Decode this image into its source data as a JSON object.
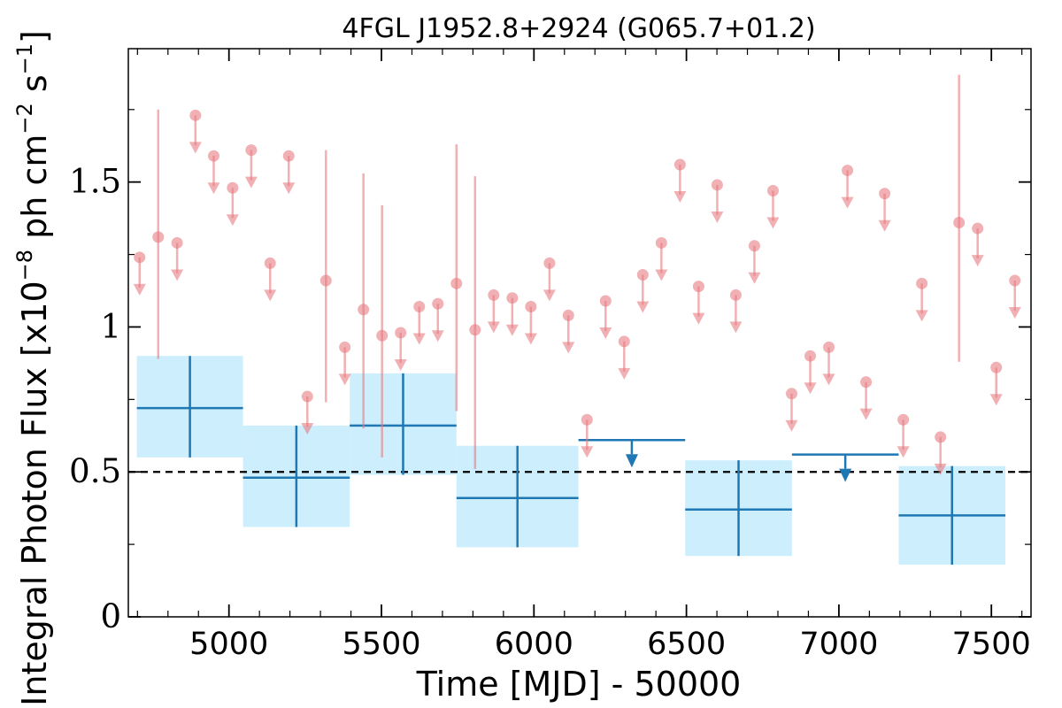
{
  "chart_data": {
    "type": "scatter",
    "title": "4FGL J1952.8+2924 (G065.7+01.2)",
    "xlabel": "Time [MJD] - 50000",
    "ylabel": {
      "main": "Integral Photon Flux [x10",
      "exp1": "−8",
      "mid": " ph cm",
      "exp2": "−2",
      "mid2": " s",
      "exp3": "−1",
      "end": "]"
    },
    "xlim": [
      4670,
      7630
    ],
    "ylim": [
      0,
      1.96
    ],
    "x_ticks": [
      5000,
      5500,
      6000,
      6500,
      7000,
      7500
    ],
    "x_tick_labels": [
      "5000",
      "5500",
      "6000",
      "6500",
      "7000",
      "7500"
    ],
    "y_ticks": [
      0,
      0.5,
      1,
      1.5
    ],
    "y_tick_labels": [
      "0",
      "0.5",
      "1",
      "1.5"
    ],
    "reference_line_y": 0.5,
    "colors": {
      "short_bins": "#e87c80",
      "long_bins": "#1f77b4",
      "long_band": "#cdeefc"
    },
    "short_bin_points": [
      {
        "x": 4707,
        "y": 1.24,
        "upper_limit": true
      },
      {
        "x": 4768,
        "y": 1.31,
        "yerr_low": 0.42,
        "yerr_high": 0.44
      },
      {
        "x": 4830,
        "y": 1.29,
        "upper_limit": true
      },
      {
        "x": 4890,
        "y": 1.73,
        "upper_limit": true
      },
      {
        "x": 4950,
        "y": 1.59,
        "upper_limit": true
      },
      {
        "x": 5012,
        "y": 1.48,
        "upper_limit": true
      },
      {
        "x": 5073,
        "y": 1.61,
        "upper_limit": true
      },
      {
        "x": 5135,
        "y": 1.22,
        "upper_limit": true
      },
      {
        "x": 5196,
        "y": 1.59,
        "upper_limit": true
      },
      {
        "x": 5257,
        "y": 0.76,
        "upper_limit": true
      },
      {
        "x": 5318,
        "y": 1.16,
        "yerr_low": 0.42,
        "yerr_high": 0.45
      },
      {
        "x": 5380,
        "y": 0.93,
        "upper_limit": true
      },
      {
        "x": 5441,
        "y": 1.06,
        "yerr_low": 0.41,
        "yerr_high": 0.47
      },
      {
        "x": 5502,
        "y": 0.97,
        "yerr_low": 0.42,
        "yerr_high": 0.45
      },
      {
        "x": 5563,
        "y": 0.98,
        "upper_limit": true
      },
      {
        "x": 5624,
        "y": 1.07,
        "upper_limit": true
      },
      {
        "x": 5685,
        "y": 1.08,
        "upper_limit": true
      },
      {
        "x": 5746,
        "y": 1.15,
        "yerr_low": 0.44,
        "yerr_high": 0.48
      },
      {
        "x": 5807,
        "y": 0.99,
        "yerr_low": 0.48,
        "yerr_high": 0.53
      },
      {
        "x": 5868,
        "y": 1.11,
        "upper_limit": true
      },
      {
        "x": 5929,
        "y": 1.1,
        "upper_limit": true
      },
      {
        "x": 5990,
        "y": 1.07,
        "upper_limit": true
      },
      {
        "x": 6051,
        "y": 1.22,
        "upper_limit": true
      },
      {
        "x": 6113,
        "y": 1.04,
        "upper_limit": true
      },
      {
        "x": 6174,
        "y": 0.68,
        "upper_limit": true
      },
      {
        "x": 6235,
        "y": 1.09,
        "upper_limit": true
      },
      {
        "x": 6296,
        "y": 0.95,
        "upper_limit": true
      },
      {
        "x": 6357,
        "y": 1.18,
        "upper_limit": true
      },
      {
        "x": 6418,
        "y": 1.29,
        "upper_limit": true
      },
      {
        "x": 6479,
        "y": 1.56,
        "upper_limit": true
      },
      {
        "x": 6540,
        "y": 1.14,
        "upper_limit": true
      },
      {
        "x": 6601,
        "y": 1.49,
        "upper_limit": true
      },
      {
        "x": 6662,
        "y": 1.11,
        "upper_limit": true
      },
      {
        "x": 6723,
        "y": 1.28,
        "upper_limit": true
      },
      {
        "x": 6784,
        "y": 1.47,
        "upper_limit": true
      },
      {
        "x": 6845,
        "y": 0.77,
        "upper_limit": true
      },
      {
        "x": 6906,
        "y": 0.9,
        "upper_limit": true
      },
      {
        "x": 6967,
        "y": 0.93,
        "upper_limit": true
      },
      {
        "x": 7028,
        "y": 1.54,
        "upper_limit": true
      },
      {
        "x": 7089,
        "y": 0.81,
        "upper_limit": true
      },
      {
        "x": 7150,
        "y": 1.46,
        "upper_limit": true
      },
      {
        "x": 7211,
        "y": 0.68,
        "upper_limit": true
      },
      {
        "x": 7272,
        "y": 1.15,
        "upper_limit": true
      },
      {
        "x": 7333,
        "y": 0.62,
        "upper_limit": true
      },
      {
        "x": 7394,
        "y": 1.36,
        "yerr_low": 0.48,
        "yerr_high": 0.51
      },
      {
        "x": 7455,
        "y": 1.34,
        "upper_limit": true
      },
      {
        "x": 7516,
        "y": 0.86,
        "upper_limit": true
      },
      {
        "x": 7577,
        "y": 1.16,
        "upper_limit": true
      }
    ],
    "long_bin_points": [
      {
        "x0": 4698,
        "x1": 5046,
        "x": 4872,
        "y": 0.72,
        "yerr_low": 0.17,
        "yerr_high": 0.18
      },
      {
        "x0": 5046,
        "x1": 5396,
        "x": 5221,
        "y": 0.48,
        "yerr_low": 0.17,
        "yerr_high": 0.18
      },
      {
        "x0": 5396,
        "x1": 5746,
        "x": 5571,
        "y": 0.66,
        "yerr_low": 0.17,
        "yerr_high": 0.18
      },
      {
        "x0": 5746,
        "x1": 6146,
        "x": 5946,
        "y": 0.41,
        "yerr_low": 0.17,
        "yerr_high": 0.18
      },
      {
        "x0": 6146,
        "x1": 6496,
        "x": 6321,
        "y": 0.61,
        "upper_limit": true
      },
      {
        "x0": 6496,
        "x1": 6846,
        "x": 6671,
        "y": 0.37,
        "yerr_low": 0.16,
        "yerr_high": 0.17
      },
      {
        "x0": 6846,
        "x1": 7196,
        "x": 7021,
        "y": 0.56,
        "upper_limit": true
      },
      {
        "x0": 7196,
        "x1": 7546,
        "x": 7371,
        "y": 0.35,
        "yerr_low": 0.17,
        "yerr_high": 0.17
      }
    ]
  }
}
